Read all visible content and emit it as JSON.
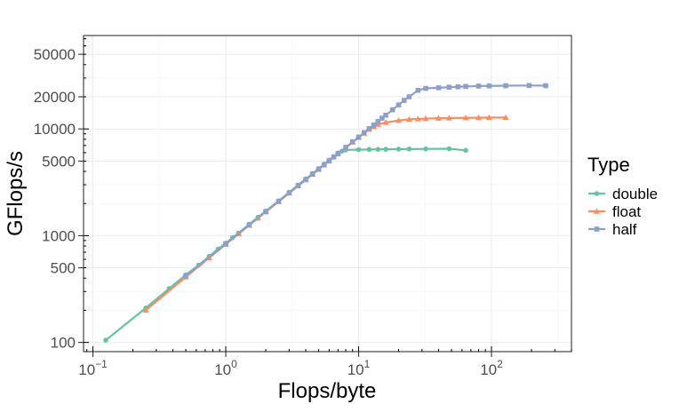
{
  "chart_data": {
    "type": "line",
    "xlabel": "Flops/byte",
    "ylabel": "GFlops/s",
    "x_scale": "log10",
    "y_scale": "log10",
    "xlim": [
      0.085,
      400
    ],
    "ylim": [
      82,
      75000
    ],
    "x_ticks": [
      {
        "value": 0.1,
        "base": "10",
        "exp": "−1"
      },
      {
        "value": 1,
        "base": "10",
        "exp": "0"
      },
      {
        "value": 10,
        "base": "10",
        "exp": "1"
      },
      {
        "value": 100,
        "base": "10",
        "exp": "2"
      }
    ],
    "y_ticks": [
      {
        "value": 100,
        "label": "100"
      },
      {
        "value": 500,
        "label": "500"
      },
      {
        "value": 1000,
        "label": "1000"
      },
      {
        "value": 5000,
        "label": "5000"
      },
      {
        "value": 10000,
        "label": "10000"
      },
      {
        "value": 20000,
        "label": "20000"
      },
      {
        "value": 50000,
        "label": "50000"
      }
    ],
    "grid": true,
    "legend": {
      "title": "Type",
      "position": "right"
    },
    "series": [
      {
        "name": "double",
        "color": "#66c2a5",
        "marker": "circle",
        "points": [
          [
            0.125,
            105
          ],
          [
            0.25,
            210
          ],
          [
            0.375,
            320
          ],
          [
            0.5,
            430
          ],
          [
            0.625,
            530
          ],
          [
            0.75,
            640
          ],
          [
            0.875,
            750
          ],
          [
            1.0,
            850
          ],
          [
            1.125,
            960
          ],
          [
            1.25,
            1060
          ],
          [
            1.5,
            1280
          ],
          [
            1.75,
            1490
          ],
          [
            2.0,
            1700
          ],
          [
            2.5,
            2120
          ],
          [
            3.0,
            2550
          ],
          [
            3.5,
            2980
          ],
          [
            4.0,
            3400
          ],
          [
            4.5,
            3820
          ],
          [
            5.0,
            4250
          ],
          [
            5.5,
            4680
          ],
          [
            6.0,
            5100
          ],
          [
            6.5,
            5500
          ],
          [
            7.0,
            5950
          ],
          [
            7.5,
            6200
          ],
          [
            8.0,
            6350
          ],
          [
            10.0,
            6400
          ],
          [
            12.0,
            6420
          ],
          [
            14.0,
            6440
          ],
          [
            16.0,
            6450
          ],
          [
            20.0,
            6470
          ],
          [
            24.0,
            6480
          ],
          [
            32.0,
            6500
          ],
          [
            48.0,
            6520
          ],
          [
            64.0,
            6300
          ]
        ]
      },
      {
        "name": "float",
        "color": "#fc8d62",
        "marker": "triangle",
        "points": [
          [
            0.25,
            200
          ],
          [
            0.5,
            410
          ],
          [
            0.75,
            620
          ],
          [
            1.0,
            830
          ],
          [
            1.25,
            1040
          ],
          [
            1.5,
            1250
          ],
          [
            1.75,
            1460
          ],
          [
            2.0,
            1670
          ],
          [
            2.5,
            2080
          ],
          [
            3.0,
            2500
          ],
          [
            3.5,
            2920
          ],
          [
            4.0,
            3330
          ],
          [
            4.5,
            3750
          ],
          [
            5.0,
            4170
          ],
          [
            5.5,
            4580
          ],
          [
            6.0,
            5000
          ],
          [
            7.0,
            5830
          ],
          [
            8.0,
            6650
          ],
          [
            9.0,
            7500
          ],
          [
            10.0,
            8300
          ],
          [
            11.0,
            9100
          ],
          [
            12.0,
            9900
          ],
          [
            13.0,
            10500
          ],
          [
            14.0,
            11000
          ],
          [
            16.0,
            11500
          ],
          [
            20.0,
            12000
          ],
          [
            24.0,
            12300
          ],
          [
            28.0,
            12400
          ],
          [
            32.0,
            12500
          ],
          [
            40.0,
            12600
          ],
          [
            48.0,
            12650
          ],
          [
            64.0,
            12700
          ],
          [
            80.0,
            12750
          ],
          [
            96.0,
            12780
          ],
          [
            128.0,
            12800
          ]
        ]
      },
      {
        "name": "half",
        "color": "#8da0cb",
        "marker": "square",
        "points": [
          [
            0.5,
            420
          ],
          [
            1.0,
            840
          ],
          [
            1.5,
            1260
          ],
          [
            2.0,
            1680
          ],
          [
            2.5,
            2100
          ],
          [
            3.0,
            2520
          ],
          [
            3.5,
            2940
          ],
          [
            4.0,
            3360
          ],
          [
            4.5,
            3780
          ],
          [
            5.0,
            4200
          ],
          [
            5.5,
            4620
          ],
          [
            6.0,
            5040
          ],
          [
            6.5,
            5460
          ],
          [
            7.0,
            5880
          ],
          [
            8.0,
            6720
          ],
          [
            9.0,
            7560
          ],
          [
            10.0,
            8400
          ],
          [
            11.0,
            9240
          ],
          [
            12.0,
            10080
          ],
          [
            13.0,
            10900
          ],
          [
            14.0,
            11760
          ],
          [
            15.0,
            12600
          ],
          [
            16.0,
            13440
          ],
          [
            18.0,
            15100
          ],
          [
            20.0,
            16800
          ],
          [
            22.0,
            18500
          ],
          [
            24.0,
            20000
          ],
          [
            28.0,
            23000
          ],
          [
            32.0,
            24000
          ],
          [
            40.0,
            24300
          ],
          [
            48.0,
            24600
          ],
          [
            56.0,
            24800
          ],
          [
            64.0,
            25000
          ],
          [
            80.0,
            25200
          ],
          [
            96.0,
            25300
          ],
          [
            128.0,
            25400
          ],
          [
            192.0,
            25500
          ],
          [
            256.0,
            25400
          ]
        ]
      }
    ]
  }
}
